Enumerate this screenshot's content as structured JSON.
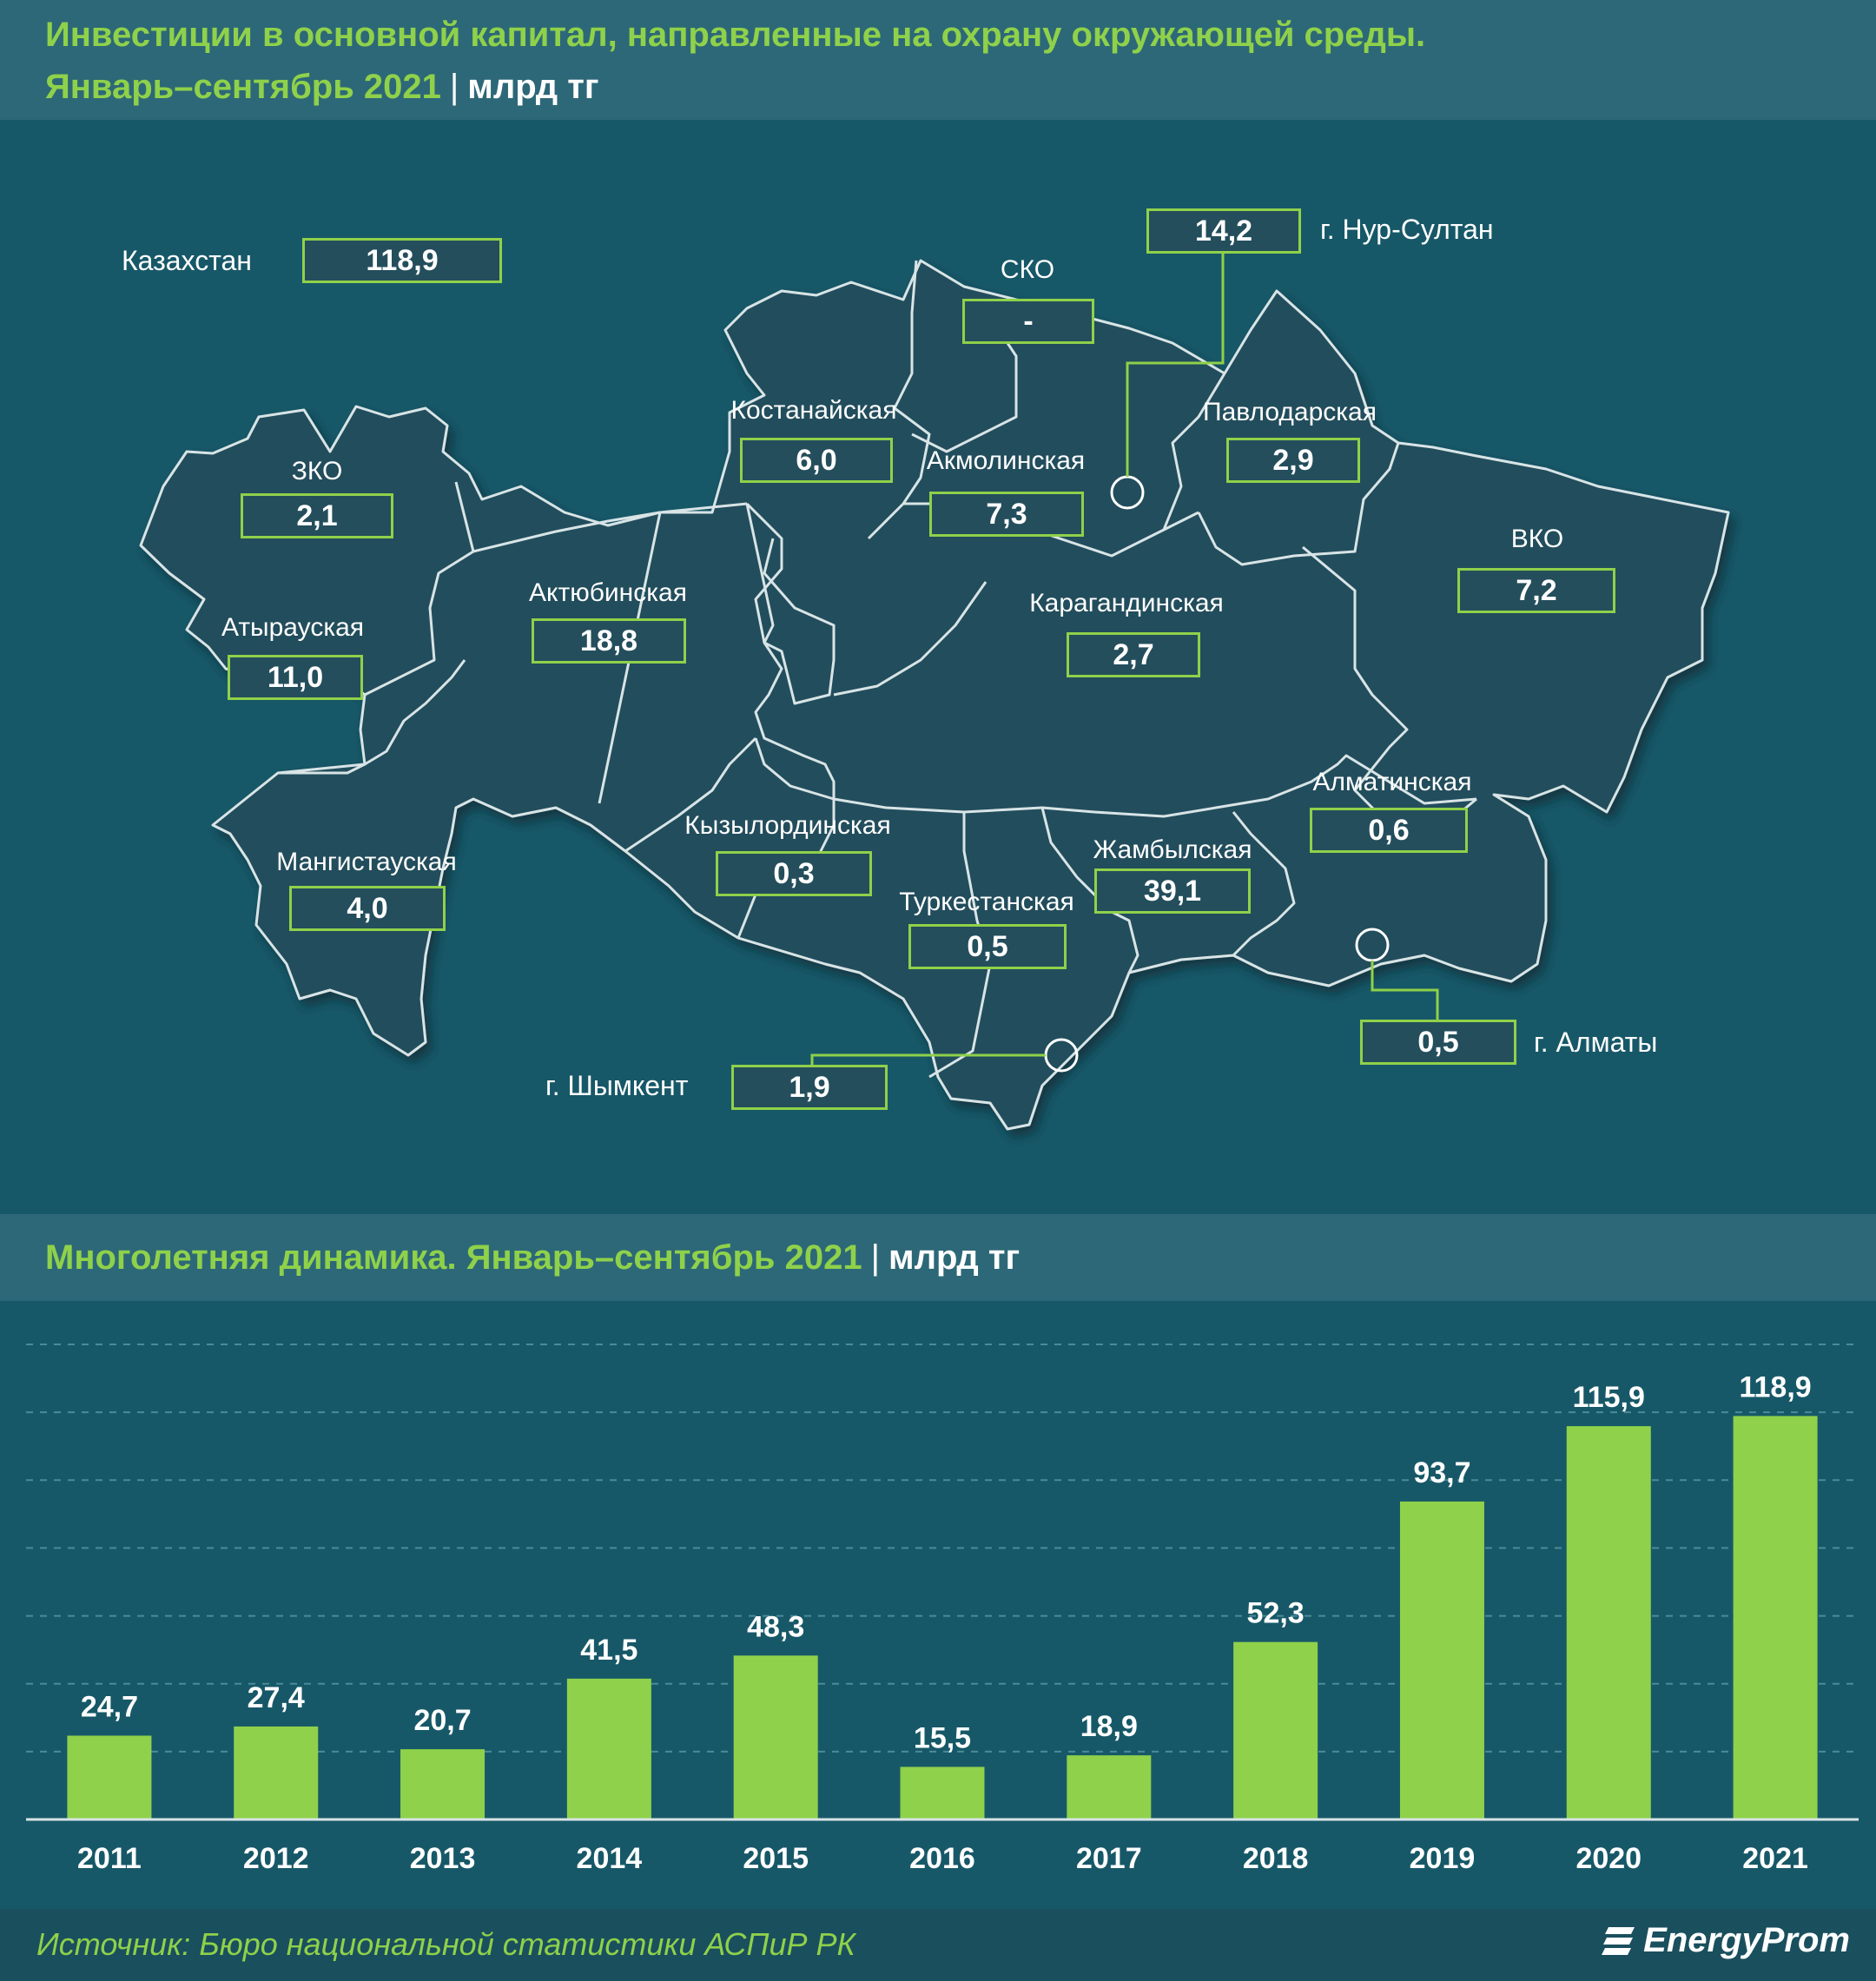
{
  "header": {
    "line1": "Инвестиции в основной капитал, направленные на охрану окружающей среды.",
    "period": "Январь–сентябрь 2021",
    "separator": "|",
    "unit": "млрд тг"
  },
  "map": {
    "country": {
      "label": "Казахстан",
      "value": "118,9"
    },
    "regions": [
      {
        "id": "nur-sultan",
        "label": "г. Нур-Султан",
        "value": "14,2"
      },
      {
        "id": "sko",
        "label": "СКО",
        "value": "-"
      },
      {
        "id": "kostanay",
        "label": "Костанайская",
        "value": "6,0"
      },
      {
        "id": "akmola",
        "label": "Акмолинская",
        "value": "7,3"
      },
      {
        "id": "pavlodar",
        "label": "Павлодарская",
        "value": "2,9"
      },
      {
        "id": "zko",
        "label": "ЗКО",
        "value": "2,1"
      },
      {
        "id": "aktobe",
        "label": "Актюбинская",
        "value": "18,8"
      },
      {
        "id": "atyrau",
        "label": "Атырауская",
        "value": "11,0"
      },
      {
        "id": "karaganda",
        "label": "Карагандинская",
        "value": "2,7"
      },
      {
        "id": "vko",
        "label": "ВКО",
        "value": "7,2"
      },
      {
        "id": "almaty-obl",
        "label": "Алматинская",
        "value": "0,6"
      },
      {
        "id": "kyzylorda",
        "label": "Кызылординская",
        "value": "0,3"
      },
      {
        "id": "zhambyl",
        "label": "Жамбылская",
        "value": "39,1"
      },
      {
        "id": "mangystau",
        "label": "Мангистауская",
        "value": "4,0"
      },
      {
        "id": "turkestan",
        "label": "Туркестанская",
        "value": "0,5"
      },
      {
        "id": "almaty-city",
        "label": "г. Алматы",
        "value": "0,5"
      },
      {
        "id": "shymkent",
        "label": "г. Шымкент",
        "value": "1,9"
      }
    ]
  },
  "dynamics_header": {
    "title": "Многолетняя динамика. Январь–сентябрь 2021",
    "separator": "|",
    "unit": "млрд тг"
  },
  "chart_data": {
    "type": "bar",
    "categories": [
      "2011",
      "2012",
      "2013",
      "2014",
      "2015",
      "2016",
      "2017",
      "2018",
      "2019",
      "2020",
      "2021"
    ],
    "values": [
      24.7,
      27.4,
      20.7,
      41.5,
      48.3,
      15.5,
      18.9,
      52.3,
      93.7,
      115.9,
      118.9
    ],
    "data_labels": [
      "24,7",
      "27,4",
      "20,7",
      "41,5",
      "48,3",
      "15,5",
      "18,9",
      "52,3",
      "93,7",
      "115,9",
      "118,9"
    ],
    "ylim": [
      0,
      140
    ],
    "grid": true,
    "bar_color": "#8fd14a"
  },
  "footer": {
    "source": "Источник: Бюро национальной статистики АСПиР РК",
    "logo": "EnergyProm"
  },
  "colors": {
    "background": "#175868",
    "header_band": "#2d6878",
    "accent": "#8fd14a",
    "map_fill": "#244e5c"
  }
}
